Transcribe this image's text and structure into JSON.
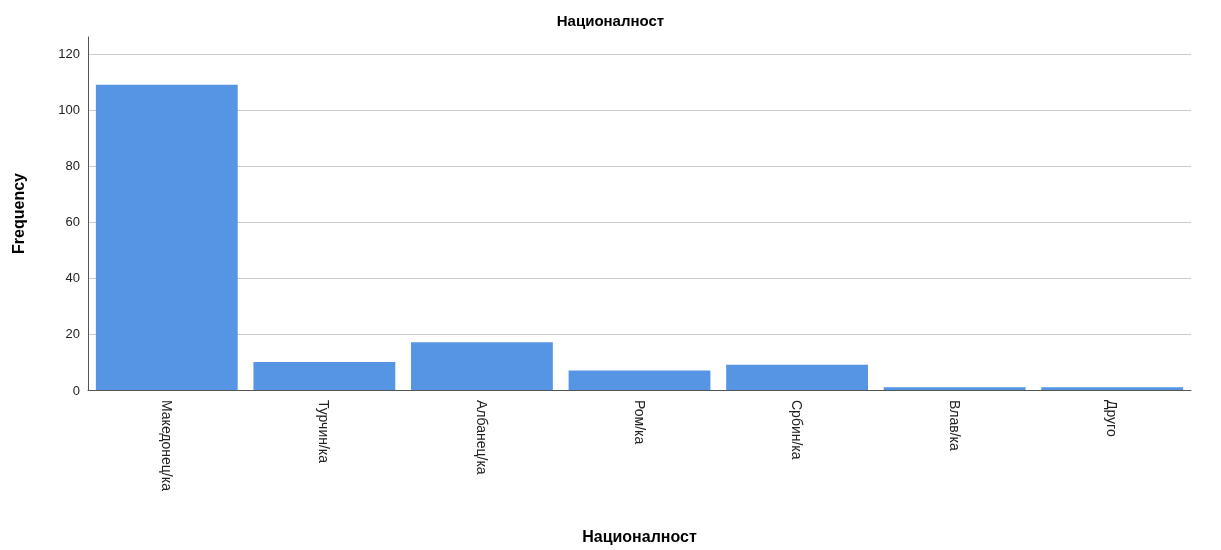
{
  "chart_data": {
    "type": "bar",
    "title": "Националност",
    "xlabel": "Националност",
    "ylabel": "Frequency",
    "categories": [
      "Македонец/ка",
      "Турчин/ка",
      "Албанец/ка",
      "Ром/ка",
      "Србин/ка",
      "Влав/ка",
      "Друго"
    ],
    "values": [
      109,
      10,
      17,
      7,
      9,
      1,
      1
    ],
    "color": "#5595e3",
    "ylim": [
      0,
      126
    ],
    "yticks": [
      0,
      20,
      40,
      60,
      80,
      100,
      120
    ],
    "grid": "y"
  }
}
